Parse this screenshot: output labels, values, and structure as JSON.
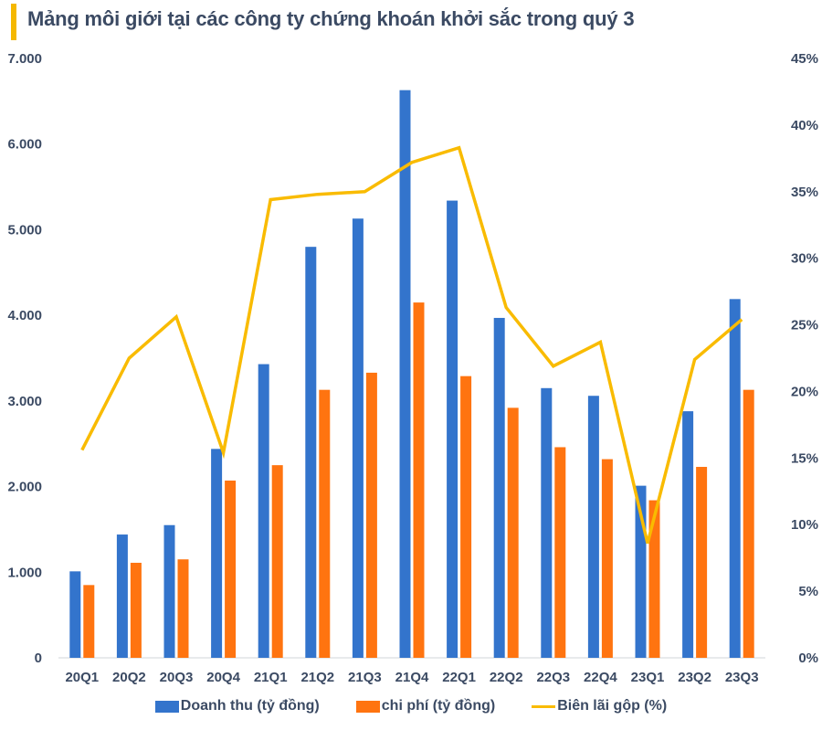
{
  "title": "Mảng môi giới tại các công ty chứng khoán khởi sắc trong quý 3",
  "colors": {
    "revenue": "#3374cc",
    "cost": "#ff7410",
    "margin": "#f9bb00",
    "accent_bar": "#f5b800",
    "text": "#3b4a63",
    "axis_line": "#d0d4da"
  },
  "chart_data": {
    "type": "bar",
    "title": "Mảng môi giới tại các công ty chứng khoán khởi sắc trong quý 3",
    "xlabel": "",
    "ylabel": "",
    "categories": [
      "20Q1",
      "20Q2",
      "20Q3",
      "20Q4",
      "21Q1",
      "21Q2",
      "21Q3",
      "21Q4",
      "22Q1",
      "22Q2",
      "22Q3",
      "22Q4",
      "23Q1",
      "23Q2",
      "23Q3"
    ],
    "ylim": [
      0,
      7000
    ],
    "y2lim": [
      0,
      45
    ],
    "yticks": [
      "0",
      "1.000",
      "2.000",
      "3.000",
      "4.000",
      "5.000",
      "6.000",
      "7.000"
    ],
    "yticks_values": [
      0,
      1000,
      2000,
      3000,
      4000,
      5000,
      6000,
      7000
    ],
    "y2ticks": [
      "0%",
      "5%",
      "10%",
      "15%",
      "20%",
      "25%",
      "30%",
      "35%",
      "40%",
      "45%"
    ],
    "y2ticks_values": [
      0,
      5,
      10,
      15,
      20,
      25,
      30,
      35,
      40,
      45
    ],
    "grid": false,
    "legend_position": "bottom",
    "series": [
      {
        "name": "Doanh thu (tỷ đồng)",
        "type": "bar",
        "axis": "left",
        "values": [
          1010,
          1440,
          1550,
          2440,
          3430,
          4800,
          5130,
          6630,
          5340,
          3970,
          3150,
          3060,
          2010,
          2880,
          4190
        ]
      },
      {
        "name": "chi phí (tỷ đồng)",
        "type": "bar",
        "axis": "left",
        "values": [
          850,
          1110,
          1150,
          2070,
          2250,
          3130,
          3330,
          4150,
          3290,
          2920,
          2460,
          2320,
          1840,
          2230,
          3130
        ]
      },
      {
        "name": "Biên lãi gộp (%)",
        "type": "line",
        "axis": "right",
        "values": [
          15.6,
          22.5,
          25.6,
          15.4,
          34.4,
          34.8,
          35.0,
          37.2,
          38.3,
          26.3,
          21.9,
          23.7,
          8.6,
          22.4,
          25.4
        ]
      }
    ]
  }
}
